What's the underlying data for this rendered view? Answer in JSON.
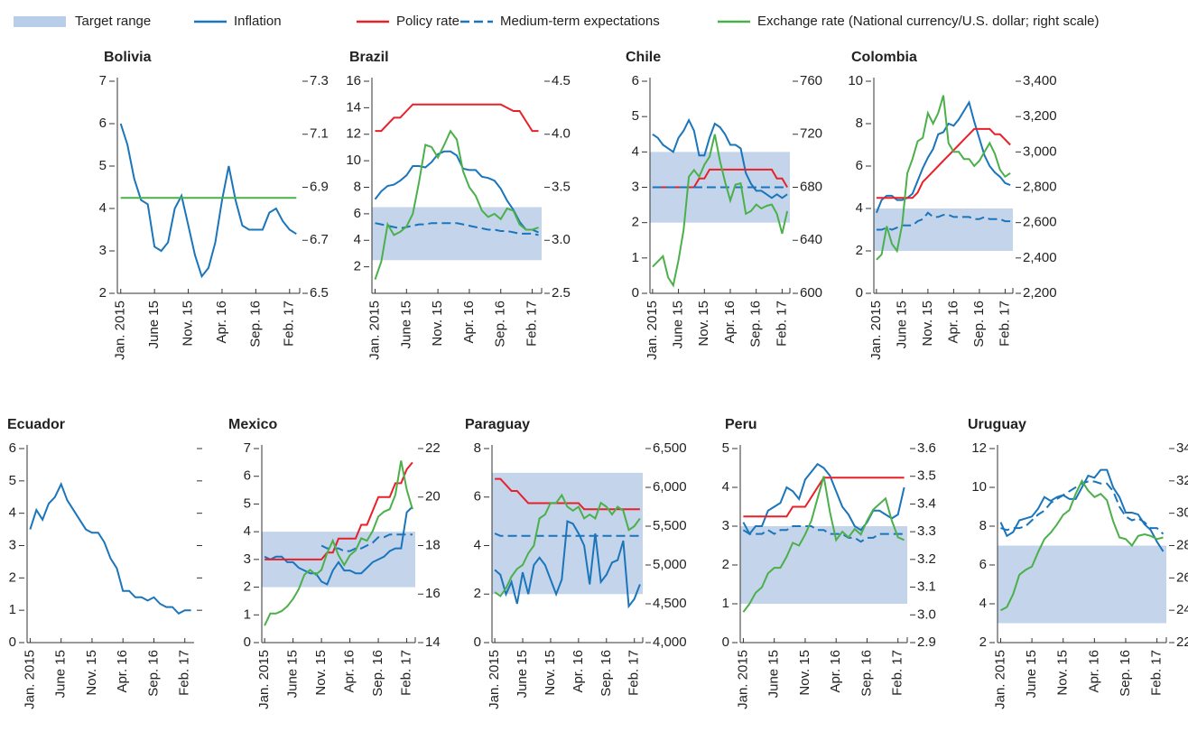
{
  "legend": [
    {
      "name": "Target range",
      "color": "#b8cde8"
    },
    {
      "name": "Inflation",
      "color": "#1a75bb"
    },
    {
      "name": "Policy rate",
      "color": "#e8202a"
    },
    {
      "name": "Medium-term expectations",
      "color": "#1a75bb",
      "dashed": true
    },
    {
      "name": "Exchange rate (National currency/U.S. dollar; right scale)",
      "color": "#4cb04a"
    }
  ],
  "categories": [
    "Jan. 2015",
    null,
    null,
    null,
    null,
    "June 15",
    null,
    null,
    null,
    null,
    "Nov. 15",
    null,
    null,
    null,
    null,
    "Apr. 16",
    null,
    null,
    null,
    null,
    "Sep. 16",
    null,
    null,
    null,
    null,
    "Feb. 17",
    null
  ],
  "chart_data": [
    {
      "type": "line",
      "title": "Bolivia",
      "ylim": [
        2,
        7
      ],
      "yticks": [
        2,
        3,
        4,
        5,
        6,
        7
      ],
      "y2lim": [
        6.5,
        7.3
      ],
      "y2ticks": [
        6.5,
        6.7,
        6.9,
        7.1,
        7.3
      ],
      "inflation": [
        6.0,
        5.5,
        4.7,
        4.2,
        4.1,
        3.1,
        3.0,
        3.2,
        4.0,
        4.3,
        3.6,
        2.9,
        2.4,
        2.6,
        3.2,
        4.2,
        5.0,
        4.2,
        3.6,
        3.5,
        3.5,
        3.5,
        3.9,
        4.0,
        3.7,
        3.5,
        3.4
      ],
      "exchange_rate": [
        6.86,
        6.86,
        6.86,
        6.86,
        6.86,
        6.86,
        6.86,
        6.86,
        6.86,
        6.86,
        6.86,
        6.86,
        6.86,
        6.86,
        6.86,
        6.86,
        6.86,
        6.86,
        6.86,
        6.86,
        6.86,
        6.86,
        6.86,
        6.86,
        6.86,
        6.86,
        6.86
      ]
    },
    {
      "type": "line",
      "title": "Brazil",
      "ylim": [
        0,
        16
      ],
      "yticks": [
        2,
        4,
        6,
        8,
        10,
        12,
        14,
        16
      ],
      "y2lim": [
        2.5,
        4.5
      ],
      "y2ticks": [
        2.5,
        {
          "value": 3,
          "label": "3.0"
        },
        3.5,
        {
          "value": 4,
          "label": "4.0"
        },
        4.5
      ],
      "target_range": [
        2.5,
        6.5
      ],
      "inflation": [
        7.1,
        7.7,
        8.1,
        8.2,
        8.5,
        8.9,
        9.6,
        9.6,
        9.5,
        9.9,
        10.5,
        10.7,
        10.7,
        10.4,
        9.4,
        9.3,
        9.3,
        8.8,
        8.7,
        8.5,
        7.9,
        7.0,
        6.3,
        5.4,
        4.8,
        4.8,
        4.6
      ],
      "policy_rate": [
        12.25,
        12.25,
        12.75,
        13.25,
        13.25,
        13.75,
        14.25,
        14.25,
        14.25,
        14.25,
        14.25,
        14.25,
        14.25,
        14.25,
        14.25,
        14.25,
        14.25,
        14.25,
        14.25,
        14.25,
        14.25,
        14.0,
        13.75,
        13.75,
        13.0,
        12.25,
        12.25
      ],
      "expectations": [
        5.3,
        5.2,
        5.1,
        5.0,
        4.9,
        5.0,
        5.1,
        5.2,
        5.2,
        5.3,
        5.3,
        5.3,
        5.3,
        5.3,
        5.2,
        5.1,
        5.0,
        4.9,
        4.8,
        4.8,
        4.7,
        4.7,
        4.6,
        4.5,
        4.5,
        4.5,
        4.4
      ],
      "exchange_rate": [
        2.63,
        2.8,
        3.15,
        3.05,
        3.08,
        3.13,
        3.25,
        3.55,
        3.9,
        3.88,
        3.78,
        3.9,
        4.03,
        3.95,
        3.65,
        3.5,
        3.42,
        3.28,
        3.22,
        3.25,
        3.2,
        3.3,
        3.28,
        3.15,
        3.1,
        3.1,
        3.12
      ]
    },
    {
      "type": "line",
      "title": "Chile",
      "ylim": [
        0,
        6
      ],
      "yticks": [
        0,
        1,
        2,
        3,
        4,
        5,
        6
      ],
      "y2lim": [
        600,
        760
      ],
      "y2ticks": [
        600,
        640,
        680,
        720,
        760
      ],
      "target_range": [
        2,
        4
      ],
      "inflation": [
        4.5,
        4.4,
        4.2,
        4.1,
        4.0,
        4.4,
        4.6,
        4.9,
        4.6,
        3.9,
        3.9,
        4.4,
        4.8,
        4.7,
        4.5,
        4.2,
        4.2,
        4.1,
        3.4,
        3.1,
        2.9,
        2.9,
        2.8,
        2.7,
        2.8,
        2.7,
        2.8
      ],
      "policy_rate": [
        3.0,
        3.0,
        3.0,
        3.0,
        3.0,
        3.0,
        3.0,
        3.0,
        3.0,
        3.25,
        3.25,
        3.5,
        3.5,
        3.5,
        3.5,
        3.5,
        3.5,
        3.5,
        3.5,
        3.5,
        3.5,
        3.5,
        3.5,
        3.5,
        3.25,
        3.25,
        3.0
      ],
      "expectations": [
        3.0,
        3.0,
        3.0,
        3.0,
        3.0,
        3.0,
        3.0,
        3.0,
        3.0,
        3.0,
        3.0,
        3.0,
        3.0,
        3.0,
        3.0,
        3.0,
        3.0,
        3.0,
        3.0,
        3.0,
        3.0,
        3.0,
        3.0,
        3.0,
        3.0,
        3.0,
        3.0
      ],
      "exchange_rate": [
        620,
        624,
        628,
        612,
        606,
        625,
        648,
        688,
        693,
        688,
        697,
        703,
        720,
        700,
        684,
        670,
        682,
        683,
        660,
        662,
        667,
        664,
        666,
        667,
        660,
        645,
        662
      ]
    },
    {
      "type": "line",
      "title": "Colombia",
      "ylim": [
        0,
        10
      ],
      "yticks": [
        0,
        2,
        4,
        6,
        8,
        10
      ],
      "y2lim": [
        2200,
        3400
      ],
      "y2ticks": [
        {
          "value": 2200,
          "label": "2,200"
        },
        {
          "value": 2400,
          "label": "2,400"
        },
        {
          "value": 2600,
          "label": "2,600"
        },
        {
          "value": 2800,
          "label": "2,800"
        },
        {
          "value": 3000,
          "label": "3,000"
        },
        {
          "value": 3200,
          "label": "3,200"
        },
        {
          "value": 3400,
          "label": "3,400"
        }
      ],
      "target_range": [
        2,
        4
      ],
      "inflation": [
        3.8,
        4.4,
        4.6,
        4.6,
        4.4,
        4.4,
        4.5,
        4.7,
        5.3,
        5.9,
        6.4,
        6.8,
        7.5,
        7.6,
        8.0,
        7.9,
        8.2,
        8.6,
        9.0,
        8.1,
        7.3,
        6.5,
        6.0,
        5.7,
        5.5,
        5.2,
        5.1
      ],
      "policy_rate": [
        4.5,
        4.5,
        4.5,
        4.5,
        4.5,
        4.5,
        4.5,
        4.5,
        4.75,
        5.25,
        5.5,
        5.75,
        6.0,
        6.25,
        6.5,
        6.75,
        7.0,
        7.25,
        7.5,
        7.75,
        7.75,
        7.75,
        7.75,
        7.5,
        7.5,
        7.25,
        7.0
      ],
      "expectations": [
        3.0,
        3.0,
        3.1,
        3.0,
        3.1,
        3.2,
        3.2,
        3.2,
        3.4,
        3.5,
        3.8,
        3.6,
        3.6,
        3.7,
        3.7,
        3.6,
        3.6,
        3.6,
        3.6,
        3.5,
        3.5,
        3.6,
        3.5,
        3.5,
        3.5,
        3.4,
        3.4
      ],
      "exchange_rate": [
        2390,
        2420,
        2580,
        2480,
        2440,
        2590,
        2880,
        2960,
        3060,
        3080,
        3220,
        3160,
        3220,
        3320,
        3050,
        3000,
        3000,
        2960,
        2960,
        2920,
        2950,
        3000,
        3050,
        2990,
        2900,
        2860,
        2880
      ]
    },
    {
      "type": "line",
      "title": "Ecuador",
      "ylim": [
        0,
        6
      ],
      "yticks": [
        0,
        1,
        2,
        3,
        4,
        5,
        6
      ],
      "inflation": [
        3.5,
        4.1,
        3.8,
        4.3,
        4.5,
        4.9,
        4.4,
        4.1,
        3.8,
        3.5,
        3.4,
        3.4,
        3.1,
        2.6,
        2.3,
        1.6,
        1.6,
        1.4,
        1.4,
        1.3,
        1.4,
        1.2,
        1.1,
        1.1,
        0.9,
        1.0,
        1.0
      ]
    },
    {
      "type": "line",
      "title": "Mexico",
      "ylim": [
        0,
        7
      ],
      "yticks": [
        0,
        1,
        2,
        3,
        4,
        5,
        6,
        7
      ],
      "y2lim": [
        14,
        22
      ],
      "y2ticks": [
        14,
        16,
        18,
        20,
        22
      ],
      "target_range": [
        2,
        4
      ],
      "inflation": [
        3.1,
        3.0,
        3.1,
        3.1,
        2.9,
        2.9,
        2.7,
        2.6,
        2.5,
        2.5,
        2.2,
        2.1,
        2.6,
        2.9,
        2.6,
        2.6,
        2.5,
        2.5,
        2.7,
        2.9,
        3.0,
        3.1,
        3.3,
        3.4,
        3.4,
        4.7,
        4.9
      ],
      "policy_rate": [
        3.0,
        3.0,
        3.0,
        3.0,
        3.0,
        3.0,
        3.0,
        3.0,
        3.0,
        3.0,
        3.0,
        3.25,
        3.25,
        3.75,
        3.75,
        3.75,
        3.75,
        4.25,
        4.25,
        4.75,
        5.25,
        5.25,
        5.25,
        5.75,
        5.75,
        6.25,
        6.5
      ],
      "expectations": [
        null,
        null,
        null,
        null,
        null,
        null,
        null,
        null,
        null,
        null,
        3.5,
        3.4,
        3.4,
        3.4,
        3.3,
        3.3,
        3.4,
        3.4,
        3.5,
        3.6,
        3.8,
        3.8,
        3.9,
        3.9,
        3.9,
        3.9,
        3.9
      ],
      "exchange_rate": [
        14.7,
        15.2,
        15.2,
        15.3,
        15.5,
        15.8,
        16.2,
        16.8,
        17.0,
        16.8,
        17.0,
        17.7,
        18.2,
        17.6,
        17.2,
        17.6,
        17.8,
        18.3,
        18.2,
        18.6,
        19.2,
        19.4,
        19.5,
        20.1,
        21.5,
        20.3,
        19.5
      ]
    },
    {
      "type": "line",
      "title": "Paraguay",
      "ylim": [
        0,
        8
      ],
      "yticks": [
        0,
        2,
        4,
        6,
        8
      ],
      "y2lim": [
        4000,
        6500
      ],
      "y2ticks": [
        {
          "value": 4000,
          "label": "4,000"
        },
        {
          "value": 4500,
          "label": "4,500"
        },
        {
          "value": 5000,
          "label": "5,000"
        },
        {
          "value": 5500,
          "label": "5,500"
        },
        {
          "value": 6000,
          "label": "6,000"
        },
        {
          "value": 6500,
          "label": "6,500"
        }
      ],
      "target_range": [
        2,
        7
      ],
      "inflation": [
        3.0,
        2.8,
        2.0,
        2.5,
        1.6,
        2.9,
        2.0,
        3.2,
        3.5,
        3.2,
        2.6,
        2.0,
        2.6,
        5.0,
        4.9,
        4.5,
        4.0,
        2.4,
        4.5,
        2.5,
        2.8,
        3.3,
        3.4,
        4.2,
        1.5,
        1.8,
        2.4
      ],
      "policy_rate": [
        6.75,
        6.75,
        6.5,
        6.25,
        6.25,
        6.0,
        5.75,
        5.75,
        5.75,
        5.75,
        5.75,
        5.75,
        5.75,
        5.75,
        5.75,
        5.75,
        5.5,
        5.5,
        5.5,
        5.5,
        5.5,
        5.5,
        5.5,
        5.5,
        5.5,
        5.5,
        5.5
      ],
      "expectations": [
        4.5,
        4.4,
        4.4,
        4.4,
        4.4,
        4.4,
        4.4,
        4.4,
        4.4,
        4.4,
        4.4,
        4.4,
        4.4,
        4.4,
        4.4,
        4.4,
        4.4,
        4.4,
        4.4,
        4.4,
        4.4,
        4.4,
        4.4,
        4.4,
        4.4,
        4.4,
        4.4
      ],
      "exchange_rate": [
        4650,
        4600,
        4700,
        4850,
        4950,
        5000,
        5150,
        5250,
        5600,
        5650,
        5800,
        5800,
        5900,
        5750,
        5700,
        5750,
        5600,
        5650,
        5600,
        5800,
        5750,
        5650,
        5750,
        5700,
        5450,
        5500,
        5600
      ]
    },
    {
      "type": "line",
      "title": "Peru",
      "ylim": [
        0,
        5
      ],
      "yticks": [
        0,
        1,
        2,
        3,
        4,
        5
      ],
      "y2lim": [
        2.9,
        3.6
      ],
      "y2ticks": [
        2.9,
        {
          "value": 3,
          "label": "3.0"
        },
        3.1,
        3.2,
        3.3,
        3.4,
        3.5,
        3.6
      ],
      "target_range": [
        1,
        3
      ],
      "inflation": [
        3.1,
        2.8,
        3.0,
        3.0,
        3.4,
        3.5,
        3.6,
        4.0,
        3.9,
        3.7,
        4.2,
        4.4,
        4.6,
        4.5,
        4.3,
        3.9,
        3.5,
        3.3,
        3.0,
        2.9,
        3.1,
        3.4,
        3.4,
        3.3,
        3.2,
        3.3,
        4.0
      ],
      "policy_rate": [
        3.25,
        3.25,
        3.25,
        3.25,
        3.25,
        3.25,
        3.25,
        3.25,
        3.5,
        3.5,
        3.5,
        3.75,
        4.0,
        4.25,
        4.25,
        4.25,
        4.25,
        4.25,
        4.25,
        4.25,
        4.25,
        4.25,
        4.25,
        4.25,
        4.25,
        4.25,
        4.25
      ],
      "expectations": [
        2.9,
        2.8,
        2.8,
        2.8,
        2.9,
        2.8,
        2.9,
        2.9,
        3.0,
        3.0,
        3.0,
        3.0,
        2.9,
        2.9,
        2.8,
        2.8,
        2.8,
        2.7,
        2.7,
        2.6,
        2.7,
        2.7,
        2.8,
        2.8,
        2.8,
        2.8,
        2.8
      ],
      "exchange_rate": [
        3.01,
        3.04,
        3.08,
        3.1,
        3.15,
        3.17,
        3.17,
        3.21,
        3.26,
        3.25,
        3.29,
        3.34,
        3.42,
        3.5,
        3.37,
        3.27,
        3.3,
        3.28,
        3.31,
        3.29,
        3.34,
        3.38,
        3.4,
        3.42,
        3.34,
        3.28,
        3.27
      ]
    },
    {
      "type": "line",
      "title": "Uruguay",
      "ylim": [
        2,
        12
      ],
      "yticks": [
        2,
        4,
        6,
        8,
        10,
        12
      ],
      "y2lim": [
        22,
        34
      ],
      "y2ticks": [
        22,
        24,
        26,
        28,
        30,
        32,
        34
      ],
      "target_range": [
        3,
        7
      ],
      "inflation": [
        8.2,
        7.5,
        7.7,
        8.3,
        8.4,
        8.5,
        8.9,
        9.5,
        9.3,
        9.5,
        9.6,
        9.4,
        9.4,
        10.0,
        10.6,
        10.5,
        10.9,
        10.9,
        10.0,
        9.5,
        8.7,
        8.7,
        8.6,
        8.1,
        7.8,
        7.2,
        6.7
      ],
      "expectations": [
        7.9,
        7.8,
        7.9,
        7.9,
        8.0,
        8.3,
        8.6,
        8.8,
        9.2,
        9.4,
        9.6,
        9.8,
        10.0,
        10.2,
        10.3,
        10.3,
        10.2,
        10.2,
        9.8,
        9.0,
        8.5,
        8.3,
        8.4,
        8.2,
        7.9,
        7.9,
        7.6
      ],
      "exchange_rate": [
        24.0,
        24.2,
        25.0,
        26.2,
        26.5,
        26.7,
        27.6,
        28.4,
        28.8,
        29.3,
        29.9,
        30.2,
        31.2,
        32.0,
        31.4,
        31.0,
        31.2,
        30.8,
        29.5,
        28.5,
        28.4,
        28.0,
        28.6,
        28.7,
        28.6,
        28.4,
        28.5
      ]
    }
  ]
}
